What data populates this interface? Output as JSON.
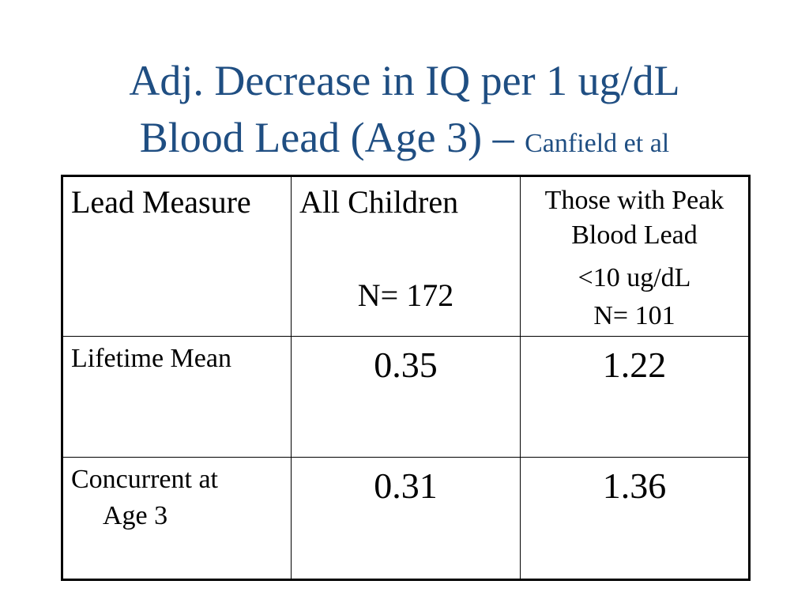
{
  "slide": {
    "title_line1": "Adj. Decrease in IQ per 1 ug/dL",
    "title_line2": "Blood Lead (Age 3) – ",
    "title_credit": "Canfield et al"
  },
  "table": {
    "header": {
      "col1": "Lead Measure",
      "col2": "All Children",
      "col2_n": "N= 172",
      "col3_line1": "Those with Peak",
      "col3_line2": "Blood Lead",
      "col3_line3": "<10 ug/dL",
      "col3_n": "N= 101"
    },
    "rows": [
      {
        "label": "Lifetime Mean",
        "label_cont": "",
        "all": "0.35",
        "peak": "1.22"
      },
      {
        "label": "Concurrent at",
        "label_cont": "Age 3",
        "all": "0.31",
        "peak": "1.36"
      }
    ]
  }
}
